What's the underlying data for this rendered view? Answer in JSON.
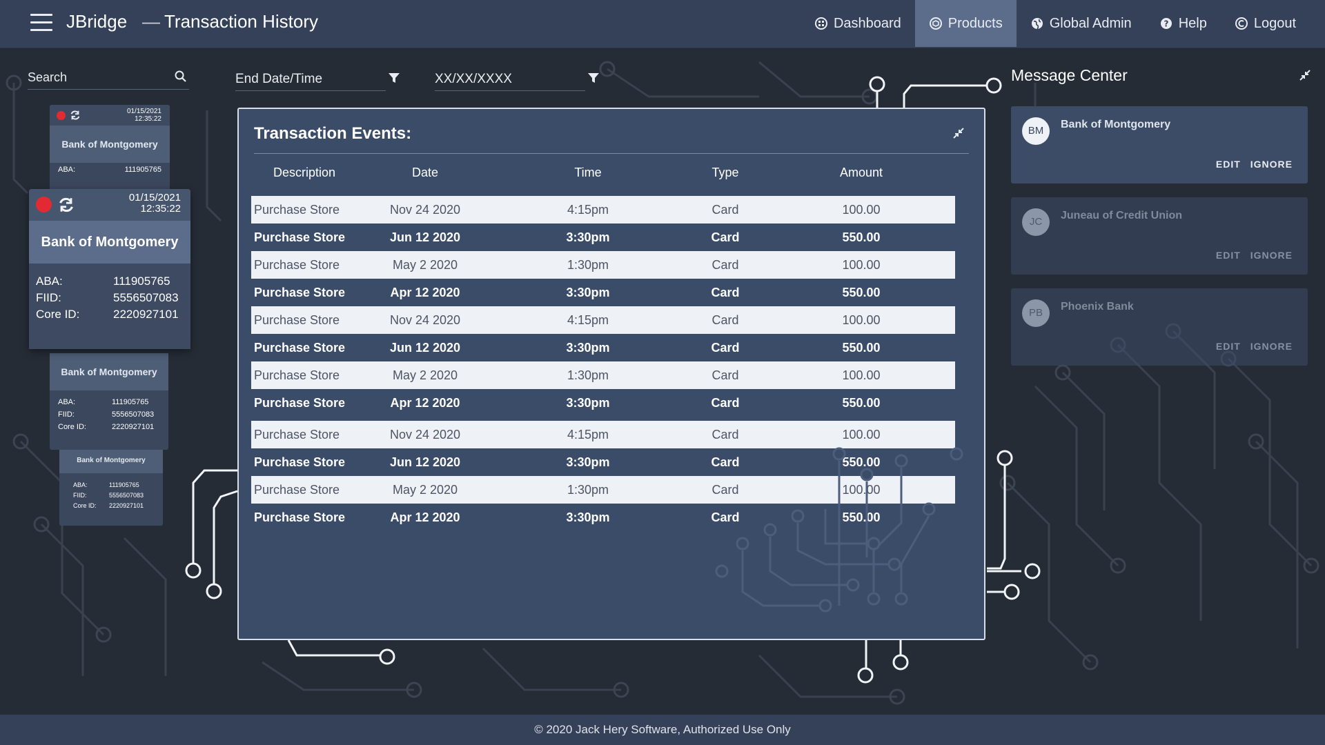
{
  "header": {
    "app_name": "JBridge",
    "separator": "—",
    "page_title": "Transaction History",
    "nav": [
      {
        "label": "Dashboard",
        "icon": "dashboard-icon",
        "active": false
      },
      {
        "label": "Products",
        "icon": "products-icon",
        "active": true
      },
      {
        "label": "Global Admin",
        "icon": "globe-icon",
        "active": false
      },
      {
        "label": "Help",
        "icon": "help-icon",
        "active": false
      },
      {
        "label": "Logout",
        "icon": "logout-icon",
        "active": false
      }
    ]
  },
  "search": {
    "placeholder": "Search"
  },
  "filters": {
    "end_date_placeholder": "End Date/Time",
    "date_placeholder": "XX/XX/XXXX"
  },
  "cards": {
    "main": {
      "date": "01/15/2021",
      "time": "12:35:22",
      "name": "Bank of Montgomery",
      "aba_label": "ABA:",
      "aba": "111905765",
      "fiid_label": "FIID:",
      "fiid": "5556507083",
      "core_label": "Core ID:",
      "core": "2220927101"
    },
    "back_top": {
      "date": "01/15/2021",
      "time": "12:35:22",
      "name": "Bank of Montgomery",
      "aba_label": "ABA:",
      "aba": "111905765"
    },
    "below1": {
      "name": "Bank of Montgomery",
      "aba_label": "ABA:",
      "aba": "111905765",
      "fiid_label": "FIID:",
      "fiid": "5556507083",
      "core_label": "Core ID:",
      "core": "2220927101"
    },
    "below2": {
      "name": "Bank of Montgomery",
      "aba_label": "ABA:",
      "aba": "111905765",
      "fiid_label": "FIID:",
      "fiid": "5556507083",
      "core_label": "Core ID:",
      "core": "2220927101"
    }
  },
  "transactions": {
    "title": "Transaction Events:",
    "columns": [
      "Description",
      "Date",
      "Time",
      "Type",
      "Amount"
    ],
    "rows": [
      {
        "description": "Purchase Store",
        "date": "Nov 24 2020",
        "time": "4:15pm",
        "type": "Card",
        "amount": "100.00"
      },
      {
        "description": "Purchase Store",
        "date": "Jun 12 2020",
        "time": "3:30pm",
        "type": "Card",
        "amount": "550.00"
      },
      {
        "description": "Purchase Store",
        "date": "May 2 2020",
        "time": "1:30pm",
        "type": "Card",
        "amount": "100.00"
      },
      {
        "description": "Purchase Store",
        "date": "Apr 12 2020",
        "time": "3:30pm",
        "type": "Card",
        "amount": "550.00"
      },
      {
        "description": "Purchase Store",
        "date": "Nov 24 2020",
        "time": "4:15pm",
        "type": "Card",
        "amount": "100.00"
      },
      {
        "description": "Purchase Store",
        "date": "Jun 12 2020",
        "time": "3:30pm",
        "type": "Card",
        "amount": "550.00"
      },
      {
        "description": "Purchase Store",
        "date": "May 2 2020",
        "time": "1:30pm",
        "type": "Card",
        "amount": "100.00"
      },
      {
        "description": "Purchase Store",
        "date": "Apr 12 2020",
        "time": "3:30pm",
        "type": "Card",
        "amount": "550.00"
      },
      {
        "description": "Purchase Store",
        "date": "Nov 24 2020",
        "time": "4:15pm",
        "type": "Card",
        "amount": "100.00"
      },
      {
        "description": "Purchase Store",
        "date": "Jun 12 2020",
        "time": "3:30pm",
        "type": "Card",
        "amount": "550.00"
      },
      {
        "description": "Purchase Store",
        "date": "May 2 2020",
        "time": "1:30pm",
        "type": "Card",
        "amount": "100.00"
      },
      {
        "description": "Purchase Store",
        "date": "Apr 12 2020",
        "time": "3:30pm",
        "type": "Card",
        "amount": "550.00"
      }
    ]
  },
  "message_center": {
    "title": "Message Center",
    "messages": [
      {
        "initials": "BM",
        "name": "Bank of Montgomery",
        "edit": "EDIT",
        "ignore": "IGNORE"
      },
      {
        "initials": "JC",
        "name": "Juneau of Credit Union",
        "edit": "EDIT",
        "ignore": "IGNORE"
      },
      {
        "initials": "PB",
        "name": "Phoenix Bank",
        "edit": "EDIT",
        "ignore": "IGNORE"
      }
    ]
  },
  "footer": {
    "text": "© 2020 Jack Hery Software, Authorized Use Only"
  },
  "colors": {
    "header_bg": "#344158",
    "nav_active": "#5b6d8a",
    "panel_bg": "#3a4c68",
    "status_red": "#e32a33",
    "page_bg": "#262c36"
  }
}
